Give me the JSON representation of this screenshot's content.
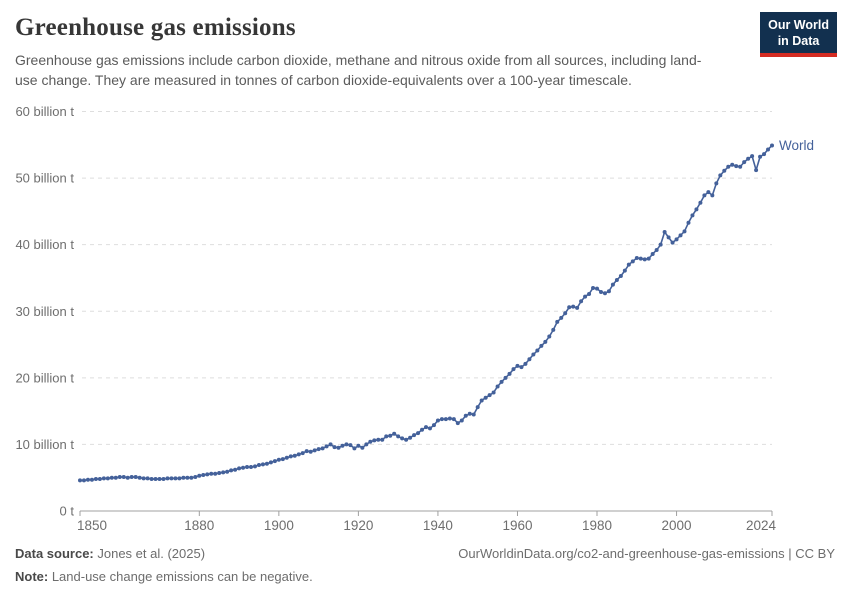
{
  "header": {
    "title": "Greenhouse gas emissions",
    "subtitle": "Greenhouse gas emissions include carbon dioxide, methane and nitrous oxide from all sources, including land-use change. They are measured in tonnes of carbon dioxide-equivalents over a 100-year timescale.",
    "logo": {
      "line1": "Our World",
      "line2": "in Data",
      "bg_color": "#12304f",
      "accent_color": "#d42b22"
    }
  },
  "chart_data": {
    "type": "line",
    "title": "Greenhouse gas emissions",
    "xlabel": "",
    "ylabel": "",
    "unit": "tonnes of CO2-equivalents",
    "ylim": [
      0,
      60
    ],
    "grid": "horizontal-dashed",
    "legend_position": "end-of-line-label",
    "xticks": [
      1850,
      1880,
      1900,
      1920,
      1940,
      1960,
      1980,
      2000,
      2024
    ],
    "yticks": [
      {
        "value": 0,
        "label": "0 t"
      },
      {
        "value": 10,
        "label": "10 billion t"
      },
      {
        "value": 20,
        "label": "20 billion t"
      },
      {
        "value": 30,
        "label": "30 billion t"
      },
      {
        "value": 40,
        "label": "40 billion t"
      },
      {
        "value": 50,
        "label": "50 billion t"
      },
      {
        "value": 60,
        "label": "60 billion t"
      }
    ],
    "x_start": 1850,
    "x_end": 2024,
    "x_step": 1,
    "series": [
      {
        "name": "World",
        "color": "#44619a",
        "marker": "circle",
        "values": [
          4.6,
          4.6,
          4.7,
          4.7,
          4.8,
          4.8,
          4.9,
          4.9,
          5.0,
          5.0,
          5.1,
          5.1,
          5.0,
          5.1,
          5.1,
          5.0,
          4.9,
          4.9,
          4.8,
          4.8,
          4.8,
          4.8,
          4.9,
          4.9,
          4.9,
          4.9,
          5.0,
          5.0,
          5.0,
          5.1,
          5.3,
          5.4,
          5.5,
          5.6,
          5.6,
          5.7,
          5.8,
          5.9,
          6.1,
          6.2,
          6.4,
          6.5,
          6.6,
          6.6,
          6.7,
          6.9,
          7.0,
          7.1,
          7.3,
          7.5,
          7.7,
          7.8,
          8.0,
          8.2,
          8.3,
          8.5,
          8.7,
          9.0,
          8.9,
          9.1,
          9.3,
          9.4,
          9.7,
          10.0,
          9.6,
          9.5,
          9.8,
          10.0,
          9.9,
          9.4,
          9.8,
          9.5,
          10.0,
          10.4,
          10.6,
          10.7,
          10.7,
          11.2,
          11.3,
          11.6,
          11.2,
          10.9,
          10.7,
          11.0,
          11.4,
          11.7,
          12.2,
          12.6,
          12.4,
          12.9,
          13.6,
          13.8,
          13.8,
          13.9,
          13.8,
          13.2,
          13.6,
          14.3,
          14.6,
          14.5,
          15.6,
          16.6,
          17.0,
          17.4,
          17.8,
          18.7,
          19.4,
          20.0,
          20.6,
          21.3,
          21.8,
          21.6,
          22.1,
          22.8,
          23.5,
          24.1,
          24.8,
          25.4,
          26.2,
          27.2,
          28.4,
          29.0,
          29.7,
          30.6,
          30.7,
          30.5,
          31.5,
          32.2,
          32.6,
          33.5,
          33.4,
          32.9,
          32.7,
          33.0,
          34.0,
          34.7,
          35.3,
          36.1,
          37.0,
          37.5,
          38.0,
          37.9,
          37.8,
          37.9,
          38.6,
          39.2,
          40.0,
          41.9,
          41.1,
          40.3,
          40.8,
          41.4,
          42.0,
          43.3,
          44.4,
          45.3,
          46.3,
          47.4,
          47.9,
          47.4,
          49.2,
          50.4,
          51.1,
          51.7,
          52.0,
          51.8,
          51.7,
          52.4,
          52.9,
          53.3,
          51.2,
          53.2,
          53.6,
          54.3,
          54.9
        ]
      }
    ]
  },
  "footer": {
    "source_label": "Data source:",
    "source_text": " Jones et al. (2025)",
    "link_text": "OurWorldinData.org/co2-and-greenhouse-gas-emissions | CC BY",
    "note_label": "Note:",
    "note_text": " Land-use change emissions can be negative."
  }
}
